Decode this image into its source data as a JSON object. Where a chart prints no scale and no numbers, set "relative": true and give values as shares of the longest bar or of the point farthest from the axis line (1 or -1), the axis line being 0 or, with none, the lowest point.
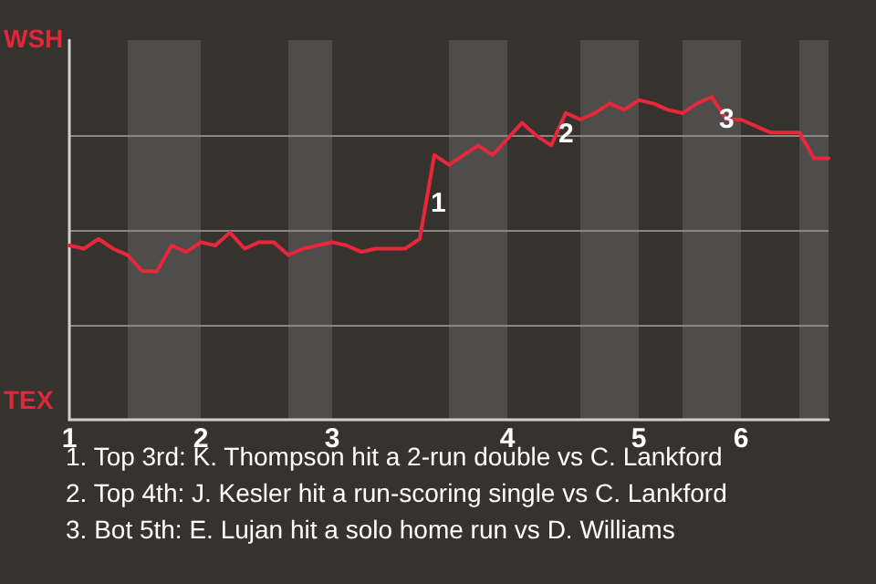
{
  "chart_data": {
    "type": "line",
    "relative": true,
    "categories": [
      "1",
      null,
      null,
      null,
      null,
      null,
      null,
      null,
      null,
      "2",
      null,
      null,
      null,
      null,
      null,
      null,
      null,
      null,
      "3",
      null,
      null,
      null,
      null,
      null,
      null,
      null,
      null,
      null,
      null,
      null,
      "4",
      null,
      null,
      null,
      null,
      null,
      null,
      null,
      null,
      "5",
      null,
      null,
      null,
      null,
      null,
      null,
      "6",
      null,
      null,
      null,
      null,
      null,
      null
    ],
    "series": [
      {
        "color": "#e8283a",
        "values": [
          0.54,
          0.53,
          0.56,
          0.53,
          0.51,
          0.46,
          0.46,
          0.54,
          0.52,
          0.55,
          0.54,
          0.58,
          0.53,
          0.55,
          0.55,
          0.51,
          0.53,
          0.54,
          0.55,
          0.54,
          0.52,
          0.53,
          0.53,
          0.53,
          0.56,
          0.82,
          0.79,
          0.82,
          0.85,
          0.82,
          0.87,
          0.92,
          0.88,
          0.85,
          0.95,
          0.93,
          0.95,
          0.98,
          0.96,
          0.99,
          0.98,
          0.96,
          0.95,
          0.98,
          1,
          0.93,
          0.93,
          0.91,
          0.89,
          0.89,
          0.89,
          0.81,
          0.81
        ]
      }
    ],
    "grid": "y",
    "marker": "none",
    "line_style": "solid",
    "annotations": [
      "WSH",
      "TEX",
      "1",
      "2",
      "3",
      "1. Top 3rd: K. Thompson hit a 2-run double vs C. Lankford",
      "2. Top 4th: J. Kesler hit a run-scoring single vs C. Lankford",
      "3. Bot 5th: E. Lujan hit a solo home run vs D. Williams"
    ]
  }
}
